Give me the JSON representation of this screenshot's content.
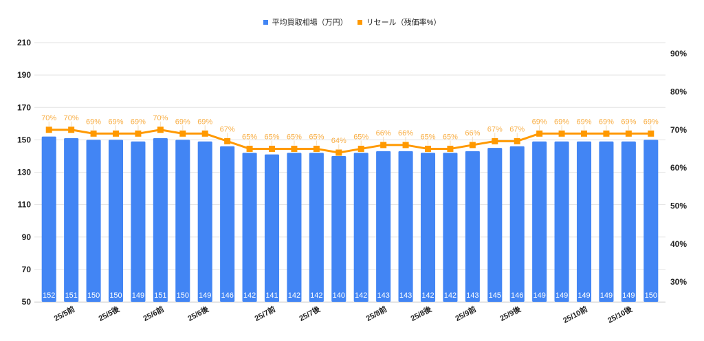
{
  "chart_data": {
    "type": "bar+line",
    "title": "",
    "xlabel": "",
    "ylabel": "",
    "legend_position": "top",
    "grid": true,
    "colors": {
      "bar": "#4285F4",
      "line": "#FF9900",
      "line_label": "#F8AE45",
      "grid": "#E3E3E3",
      "axis_text": "#222222"
    },
    "legend": [
      {
        "name": "平均買取相場（万円）",
        "color": "#4285F4"
      },
      {
        "name": "リセール（残価率%）",
        "color": "#FF9900"
      }
    ],
    "categories": [
      "",
      "25/5前",
      "",
      "25/5後",
      "",
      "25/6前",
      "",
      "25/6後",
      "",
      "",
      "25/7前",
      "",
      "25/7後",
      "",
      "",
      "25/8前",
      "",
      "25/8後",
      "",
      "25/9前",
      "",
      "25/9後",
      "",
      "",
      "25/10前",
      "",
      "25/10後",
      ""
    ],
    "left_axis": {
      "ylim": [
        50,
        210
      ],
      "ticks": [
        50,
        70,
        90,
        110,
        130,
        150,
        170,
        190,
        210
      ],
      "tick_labels": [
        "50",
        "70",
        "90",
        "110",
        "130",
        "150",
        "170",
        "190",
        "210"
      ]
    },
    "right_axis": {
      "ylim": [
        24.8,
        92.9
      ],
      "ticks": [
        30,
        40,
        50,
        60,
        70,
        80,
        90
      ],
      "tick_labels": [
        "30%",
        "40%",
        "50%",
        "60%",
        "70%",
        "80%",
        "90%"
      ]
    },
    "series": [
      {
        "name": "平均買取相場（万円）",
        "type": "bar",
        "axis": "left",
        "values": [
          152,
          151,
          150,
          150,
          149,
          151,
          150,
          149,
          146,
          142,
          141,
          142,
          142,
          140,
          142,
          143,
          143,
          142,
          142,
          143,
          145,
          146,
          149,
          149,
          149,
          149,
          149,
          150
        ]
      },
      {
        "name": "リセール（残価率%）",
        "type": "line",
        "axis": "right",
        "unit": "%",
        "values": [
          70,
          70,
          69,
          69,
          69,
          70,
          69,
          69,
          67,
          65,
          65,
          65,
          65,
          64,
          65,
          66,
          66,
          65,
          65,
          66,
          67,
          67,
          69,
          69,
          69,
          69,
          69,
          69
        ]
      }
    ]
  },
  "legend": {
    "items": [
      {
        "label": "平均買取相場（万円）",
        "color": "#4285F4"
      },
      {
        "label": "リセール（残価率%）",
        "color": "#FF9900"
      }
    ]
  }
}
